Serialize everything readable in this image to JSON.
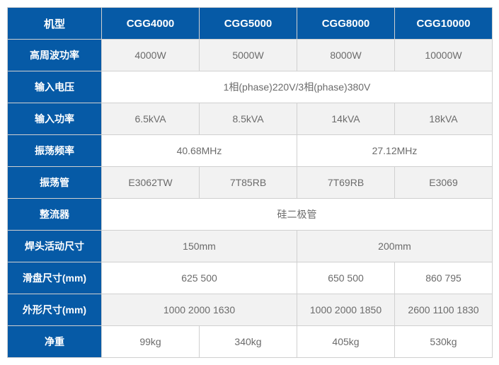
{
  "table": {
    "label_bg": "#065aa6",
    "label_color": "#ffffff",
    "value_bg": "#ffffff",
    "value_bg_alt": "#f2f2f2",
    "value_color": "#6b6b6b",
    "border_color": "#d0d0d0",
    "font_size_label": 14,
    "font_size_value": 14,
    "header": {
      "label": "机型",
      "cols": [
        "CGG4000",
        "CGG5000",
        "CGG8000",
        "CGG10000"
      ]
    },
    "rows": [
      {
        "label": "高周波功率",
        "cells": [
          "4000W",
          "5000W",
          "8000W",
          "10000W"
        ],
        "alt": true
      },
      {
        "label": "输入电压",
        "cells": [
          "1相(phase)220V/3相(phase)380V"
        ],
        "span": [
          4
        ],
        "alt": false
      },
      {
        "label": "输入功率",
        "cells": [
          "6.5kVA",
          "8.5kVA",
          "14kVA",
          "18kVA"
        ],
        "alt": true
      },
      {
        "label": "振荡频率",
        "cells": [
          "40.68MHz",
          "27.12MHz"
        ],
        "span": [
          2,
          2
        ],
        "alt": false
      },
      {
        "label": "振荡管",
        "cells": [
          "E3062TW",
          "7T85RB",
          "7T69RB",
          "E3069"
        ],
        "alt": true
      },
      {
        "label": "整流器",
        "cells": [
          "硅二极管"
        ],
        "span": [
          4
        ],
        "alt": false
      },
      {
        "label": "焊头活动尺寸",
        "cells": [
          "150mm",
          "200mm"
        ],
        "span": [
          2,
          2
        ],
        "alt": true
      },
      {
        "label": "滑盘尺寸(mm)",
        "cells": [
          "625 500",
          "650 500",
          "860 795"
        ],
        "span": [
          2,
          1,
          1
        ],
        "alt": false
      },
      {
        "label": "外形尺寸(mm)",
        "cells": [
          "1000 2000 1630",
          "1000 2000 1850",
          "2600 1100 1830"
        ],
        "span": [
          2,
          1,
          1
        ],
        "alt": true
      },
      {
        "label": "净重",
        "cells": [
          "99kg",
          "340kg",
          "405kg",
          "530kg"
        ],
        "alt": false
      }
    ]
  }
}
